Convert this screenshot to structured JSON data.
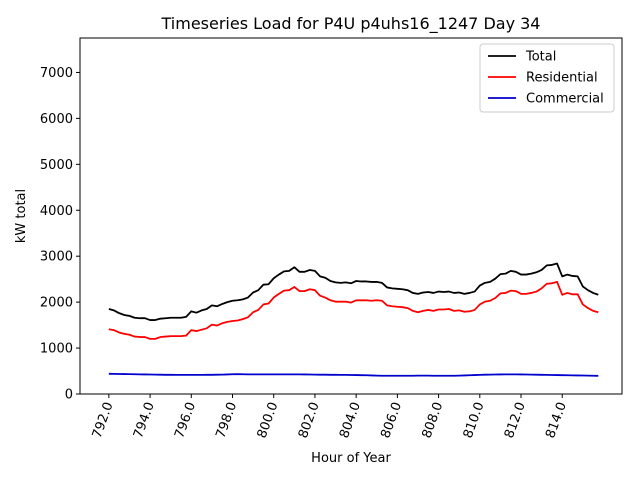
{
  "chart_data": {
    "type": "line",
    "title": "Timeseries Load for P4U p4uhs16_1247  Day 34",
    "xlabel": "Hour of Year",
    "ylabel": "kW total",
    "xlim": [
      790.6,
      816.9
    ],
    "ylim": [
      0,
      7750
    ],
    "xticks": [
      792,
      794,
      796,
      798,
      800,
      802,
      804,
      806,
      808,
      810,
      812,
      814
    ],
    "xtick_labels": [
      "792.0",
      "794.0",
      "796.0",
      "798.0",
      "800.0",
      "802.0",
      "804.0",
      "806.0",
      "808.0",
      "810.0",
      "812.0",
      "814.0"
    ],
    "yticks": [
      0,
      1000,
      2000,
      3000,
      4000,
      5000,
      6000,
      7000
    ],
    "ytick_labels": [
      "0",
      "1000",
      "2000",
      "3000",
      "4000",
      "5000",
      "6000",
      "7000"
    ],
    "legend_position": "upper-right",
    "x_start": 792.0,
    "x_step": 0.25,
    "series": [
      {
        "name": "Total",
        "color": "#000000",
        "values": [
          1850,
          1820,
          1760,
          1720,
          1700,
          1660,
          1650,
          1650,
          1610,
          1610,
          1640,
          1650,
          1660,
          1660,
          1660,
          1680,
          1800,
          1770,
          1820,
          1850,
          1930,
          1910,
          1960,
          2000,
          2030,
          2040,
          2060,
          2100,
          2210,
          2260,
          2380,
          2390,
          2520,
          2600,
          2670,
          2680,
          2760,
          2660,
          2660,
          2700,
          2680,
          2560,
          2530,
          2460,
          2430,
          2420,
          2430,
          2410,
          2460,
          2450,
          2450,
          2440,
          2440,
          2420,
          2320,
          2300,
          2290,
          2280,
          2260,
          2200,
          2180,
          2210,
          2220,
          2200,
          2230,
          2220,
          2230,
          2200,
          2210,
          2180,
          2200,
          2230,
          2360,
          2420,
          2440,
          2510,
          2610,
          2620,
          2680,
          2660,
          2600,
          2600,
          2620,
          2650,
          2700,
          2800,
          2810,
          2840,
          2560,
          2600,
          2570,
          2560,
          2340,
          2260,
          2200,
          2160
        ]
      },
      {
        "name": "Residential",
        "color": "#ff0000",
        "values": [
          1410,
          1390,
          1340,
          1310,
          1290,
          1250,
          1240,
          1240,
          1200,
          1200,
          1240,
          1250,
          1260,
          1260,
          1260,
          1270,
          1390,
          1370,
          1400,
          1430,
          1510,
          1490,
          1540,
          1570,
          1590,
          1600,
          1630,
          1670,
          1780,
          1830,
          1950,
          1970,
          2100,
          2180,
          2250,
          2260,
          2330,
          2240,
          2240,
          2280,
          2260,
          2140,
          2100,
          2040,
          2010,
          2010,
          2010,
          1990,
          2040,
          2040,
          2040,
          2030,
          2040,
          2030,
          1930,
          1910,
          1900,
          1890,
          1870,
          1810,
          1780,
          1810,
          1830,
          1810,
          1840,
          1840,
          1850,
          1810,
          1820,
          1790,
          1800,
          1830,
          1950,
          2010,
          2030,
          2090,
          2190,
          2200,
          2250,
          2240,
          2180,
          2180,
          2200,
          2230,
          2300,
          2400,
          2410,
          2440,
          2160,
          2200,
          2170,
          2170,
          1950,
          1870,
          1810,
          1780
        ]
      },
      {
        "name": "Commercial",
        "color": "#0000cc",
        "values": [
          440,
          438,
          436,
          434,
          432,
          430,
          428,
          426,
          424,
          422,
          420,
          418,
          418,
          416,
          416,
          416,
          416,
          416,
          416,
          418,
          418,
          420,
          422,
          426,
          430,
          432,
          430,
          428,
          428,
          428,
          428,
          428,
          428,
          428,
          428,
          428,
          428,
          428,
          426,
          424,
          422,
          420,
          420,
          418,
          418,
          416,
          416,
          414,
          412,
          410,
          408,
          404,
          400,
          398,
          398,
          398,
          398,
          398,
          398,
          398,
          400,
          400,
          400,
          398,
          398,
          398,
          398,
          398,
          400,
          404,
          408,
          412,
          416,
          420,
          422,
          424,
          426,
          428,
          428,
          428,
          426,
          424,
          422,
          420,
          418,
          416,
          414,
          412,
          410,
          408,
          406,
          404,
          402,
          400,
          398,
          396
        ]
      }
    ]
  }
}
